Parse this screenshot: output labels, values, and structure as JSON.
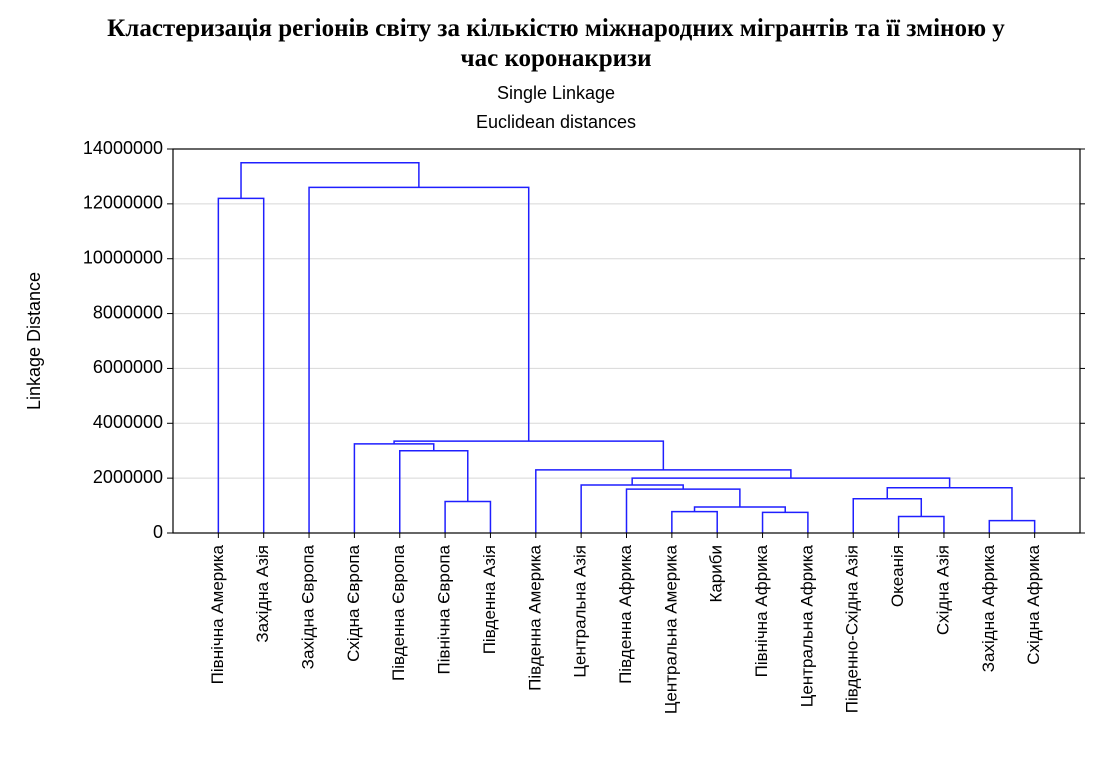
{
  "chart_data": {
    "type": "dendrogram",
    "title": "Кластеризація регіонів світу за кількістю міжнародних мігрантів та її зміною у час коронакризи",
    "subtitle": [
      "Single Linkage",
      "Euclidean distances"
    ],
    "y_label": "Linkage Distance",
    "leaves": [
      "Північна Америка",
      "Західна Азія",
      "Західна Європа",
      "Східна Європа",
      "Південна Європа",
      "Північна Європа",
      "Південна Азія",
      "Південна Америка",
      "Центральна Азія",
      "Південна Африка",
      "Центральна Америка",
      "Кариби",
      "Північна Африка",
      "Центральна Африка",
      "Південно-Східна Азія",
      "Океанія",
      "Східна Азія",
      "Західна Африка",
      "Східна Африка"
    ],
    "links": [
      {
        "children": [
          17,
          18
        ],
        "height": 450000
      },
      {
        "children": [
          15,
          16
        ],
        "height": 600000
      },
      {
        "children": [
          12,
          13
        ],
        "height": 750000
      },
      {
        "children": [
          10,
          11
        ],
        "height": 780000
      },
      {
        "children": [
          22,
          21
        ],
        "height": 950000
      },
      {
        "children": [
          5,
          6
        ],
        "height": 1150000
      },
      {
        "children": [
          14,
          20
        ],
        "height": 1250000
      },
      {
        "children": [
          9,
          23
        ],
        "height": 1600000
      },
      {
        "children": [
          25,
          19
        ],
        "height": 1650000
      },
      {
        "children": [
          8,
          26
        ],
        "height": 1750000
      },
      {
        "children": [
          28,
          27
        ],
        "height": 2000000
      },
      {
        "children": [
          7,
          29
        ],
        "height": 2300000
      },
      {
        "children": [
          4,
          24
        ],
        "height": 3000000
      },
      {
        "children": [
          3,
          31
        ],
        "height": 3250000
      },
      {
        "children": [
          32,
          30
        ],
        "height": 3350000
      },
      {
        "children": [
          0,
          1
        ],
        "height": 12200000
      },
      {
        "children": [
          2,
          33
        ],
        "height": 12600000
      },
      {
        "children": [
          34,
          35
        ],
        "height": 13500000
      }
    ],
    "color": "#1f1fff",
    "ylim": [
      0,
      14000000
    ],
    "yticks": [
      0,
      2000000,
      4000000,
      6000000,
      8000000,
      10000000,
      12000000,
      14000000
    ],
    "grid": true
  }
}
